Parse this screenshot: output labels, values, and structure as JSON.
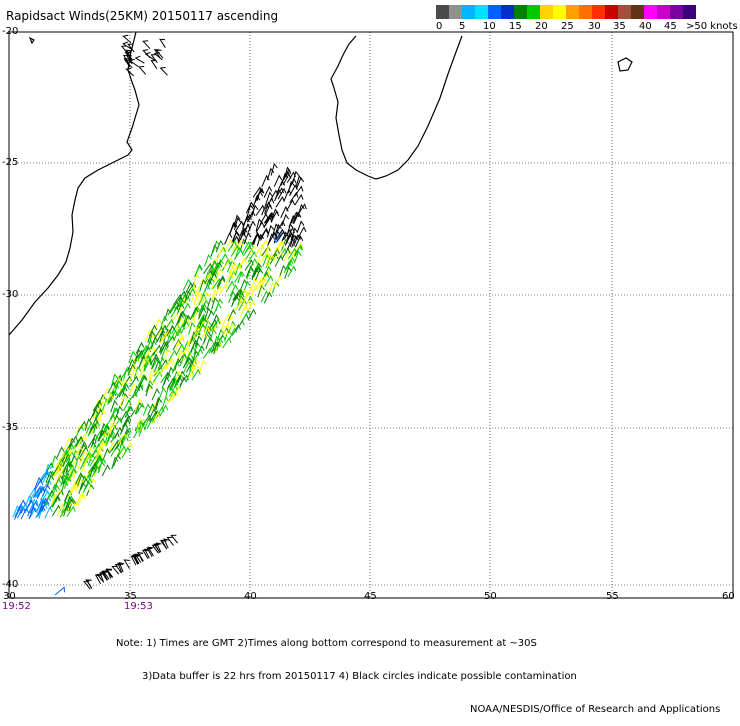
{
  "title": "Rapidsact Winds(25KM) 20150117 ascending",
  "scale": {
    "colors": [
      "#4a4a4a",
      "#909090",
      "#00b4ff",
      "#00e0ff",
      "#0060ff",
      "#0030c8",
      "#008000",
      "#00c800",
      "#ffd200",
      "#ffff00",
      "#ffa000",
      "#ff7000",
      "#ff3000",
      "#c80000",
      "#a0503c",
      "#643214",
      "#ff00ff",
      "#c800c8",
      "#7800a0",
      "#3c0078"
    ],
    "labels": [
      "0",
      "5",
      "10",
      "15",
      "20",
      "25",
      "30",
      "35",
      "40",
      "45",
      ">50 knots"
    ]
  },
  "axes": {
    "lat_labels": [
      "-20",
      "-25",
      "-30",
      "-35",
      "-40"
    ],
    "lon_labels": [
      "30",
      "35",
      "40",
      "45",
      "50",
      "55",
      "60"
    ]
  },
  "times": [
    "19:52",
    "19:53"
  ],
  "notes": [
    "Note: 1) Times are GMT 2)Times along bottom correspond to measurement at ~30S",
    "3)Data buffer is 22 hrs from 20150117 4) Black circles indicate possible contamination",
    "NOAA/NESDIS/Office of Research and Applications"
  ]
}
